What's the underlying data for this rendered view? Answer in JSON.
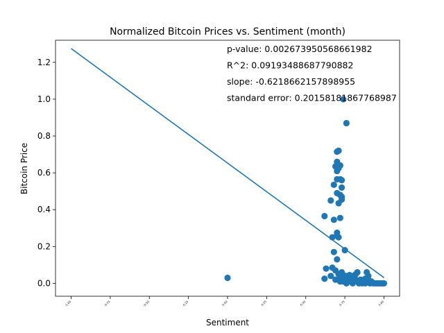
{
  "chart_data": {
    "type": "scatter",
    "title": "Normalized Bitcoin Prices vs. Sentiment (month)",
    "xlabel": "Sentiment",
    "ylabel": "Bitcoin Price",
    "xlim": [
      -1.1,
      1.1
    ],
    "ylim": [
      -0.07,
      1.32
    ],
    "xticks": [
      "-1.00",
      "-0.75",
      "-0.50",
      "-0.25",
      "0.00",
      "0.25",
      "0.50",
      "0.75",
      "1.00"
    ],
    "xtick_values": [
      -1.0,
      -0.75,
      -0.5,
      -0.25,
      0.0,
      0.25,
      0.5,
      0.75,
      1.0
    ],
    "yticks": [
      "0.0",
      "0.2",
      "0.4",
      "0.6",
      "0.8",
      "1.0",
      "1.2"
    ],
    "ytick_values": [
      0.0,
      0.2,
      0.4,
      0.6,
      0.8,
      1.0,
      1.2
    ],
    "grid": false,
    "colors": {
      "points": "#1f77b4",
      "line": "#1f77b4"
    },
    "annotations": [
      "p-value: 0.002673950568661982",
      "R^2: 0.09193488687790882",
      "slope: -0.6218662157898955",
      "standard error: 0.20158181867768987"
    ],
    "regression_line": {
      "x": [
        -1.0,
        1.0
      ],
      "y": [
        1.275,
        0.031
      ]
    },
    "points": [
      [
        0.0,
        0.03
      ],
      [
        0.62,
        0.365
      ],
      [
        0.63,
        0.08
      ],
      [
        0.62,
        0.025
      ],
      [
        0.66,
        0.45
      ],
      [
        0.67,
        0.25
      ],
      [
        0.67,
        0.085
      ],
      [
        0.66,
        0.04
      ],
      [
        0.68,
        0.535
      ],
      [
        0.68,
        0.345
      ],
      [
        0.68,
        0.17
      ],
      [
        0.69,
        0.635
      ],
      [
        0.69,
        0.02
      ],
      [
        0.7,
        0.715
      ],
      [
        0.71,
        0.72
      ],
      [
        0.7,
        0.66
      ],
      [
        0.7,
        0.61
      ],
      [
        0.71,
        0.625
      ],
      [
        0.72,
        0.64
      ],
      [
        0.7,
        0.565
      ],
      [
        0.72,
        0.565
      ],
      [
        0.73,
        0.56
      ],
      [
        0.7,
        0.49
      ],
      [
        0.73,
        0.52
      ],
      [
        0.72,
        0.48
      ],
      [
        0.73,
        0.47
      ],
      [
        0.73,
        0.455
      ],
      [
        0.71,
        0.435
      ],
      [
        0.72,
        0.355
      ],
      [
        0.7,
        0.275
      ],
      [
        0.7,
        0.26
      ],
      [
        0.71,
        0.25
      ],
      [
        0.7,
        0.13
      ],
      [
        0.69,
        0.07
      ],
      [
        0.71,
        0.05
      ],
      [
        0.72,
        0.04
      ],
      [
        0.73,
        0.06
      ],
      [
        0.74,
        0.03
      ],
      [
        0.74,
        1.0
      ],
      [
        0.76,
        0.87
      ],
      [
        0.75,
        0.18
      ],
      [
        0.74,
        0.045
      ],
      [
        0.75,
        0.02
      ],
      [
        0.76,
        0.0
      ],
      [
        0.76,
        0.04
      ],
      [
        0.77,
        0.03
      ],
      [
        0.78,
        0.01
      ],
      [
        0.78,
        0.045
      ],
      [
        0.79,
        0.02
      ],
      [
        0.8,
        0.0
      ],
      [
        0.8,
        0.04
      ],
      [
        0.81,
        0.03
      ],
      [
        0.82,
        0.05
      ],
      [
        0.83,
        0.06
      ],
      [
        0.83,
        0.01
      ],
      [
        0.84,
        0.0
      ],
      [
        0.85,
        0.02
      ],
      [
        0.86,
        0.0
      ],
      [
        0.87,
        0.01
      ],
      [
        0.88,
        0.0
      ],
      [
        0.89,
        0.06
      ],
      [
        0.9,
        0.04
      ],
      [
        0.9,
        0.02
      ],
      [
        0.91,
        0.0
      ],
      [
        0.92,
        0.01
      ],
      [
        0.93,
        0.0
      ],
      [
        0.94,
        0.0
      ],
      [
        0.95,
        0.0
      ],
      [
        0.96,
        0.0
      ],
      [
        0.97,
        0.0
      ],
      [
        0.98,
        0.0
      ],
      [
        0.99,
        0.0
      ],
      [
        1.0,
        0.0
      ],
      [
        0.77,
        0.01
      ],
      [
        0.79,
        0.035
      ],
      [
        0.82,
        0.02
      ],
      [
        0.86,
        0.015
      ],
      [
        0.88,
        0.025
      ],
      [
        0.72,
        0.01
      ],
      [
        0.74,
        0.01
      ]
    ]
  }
}
